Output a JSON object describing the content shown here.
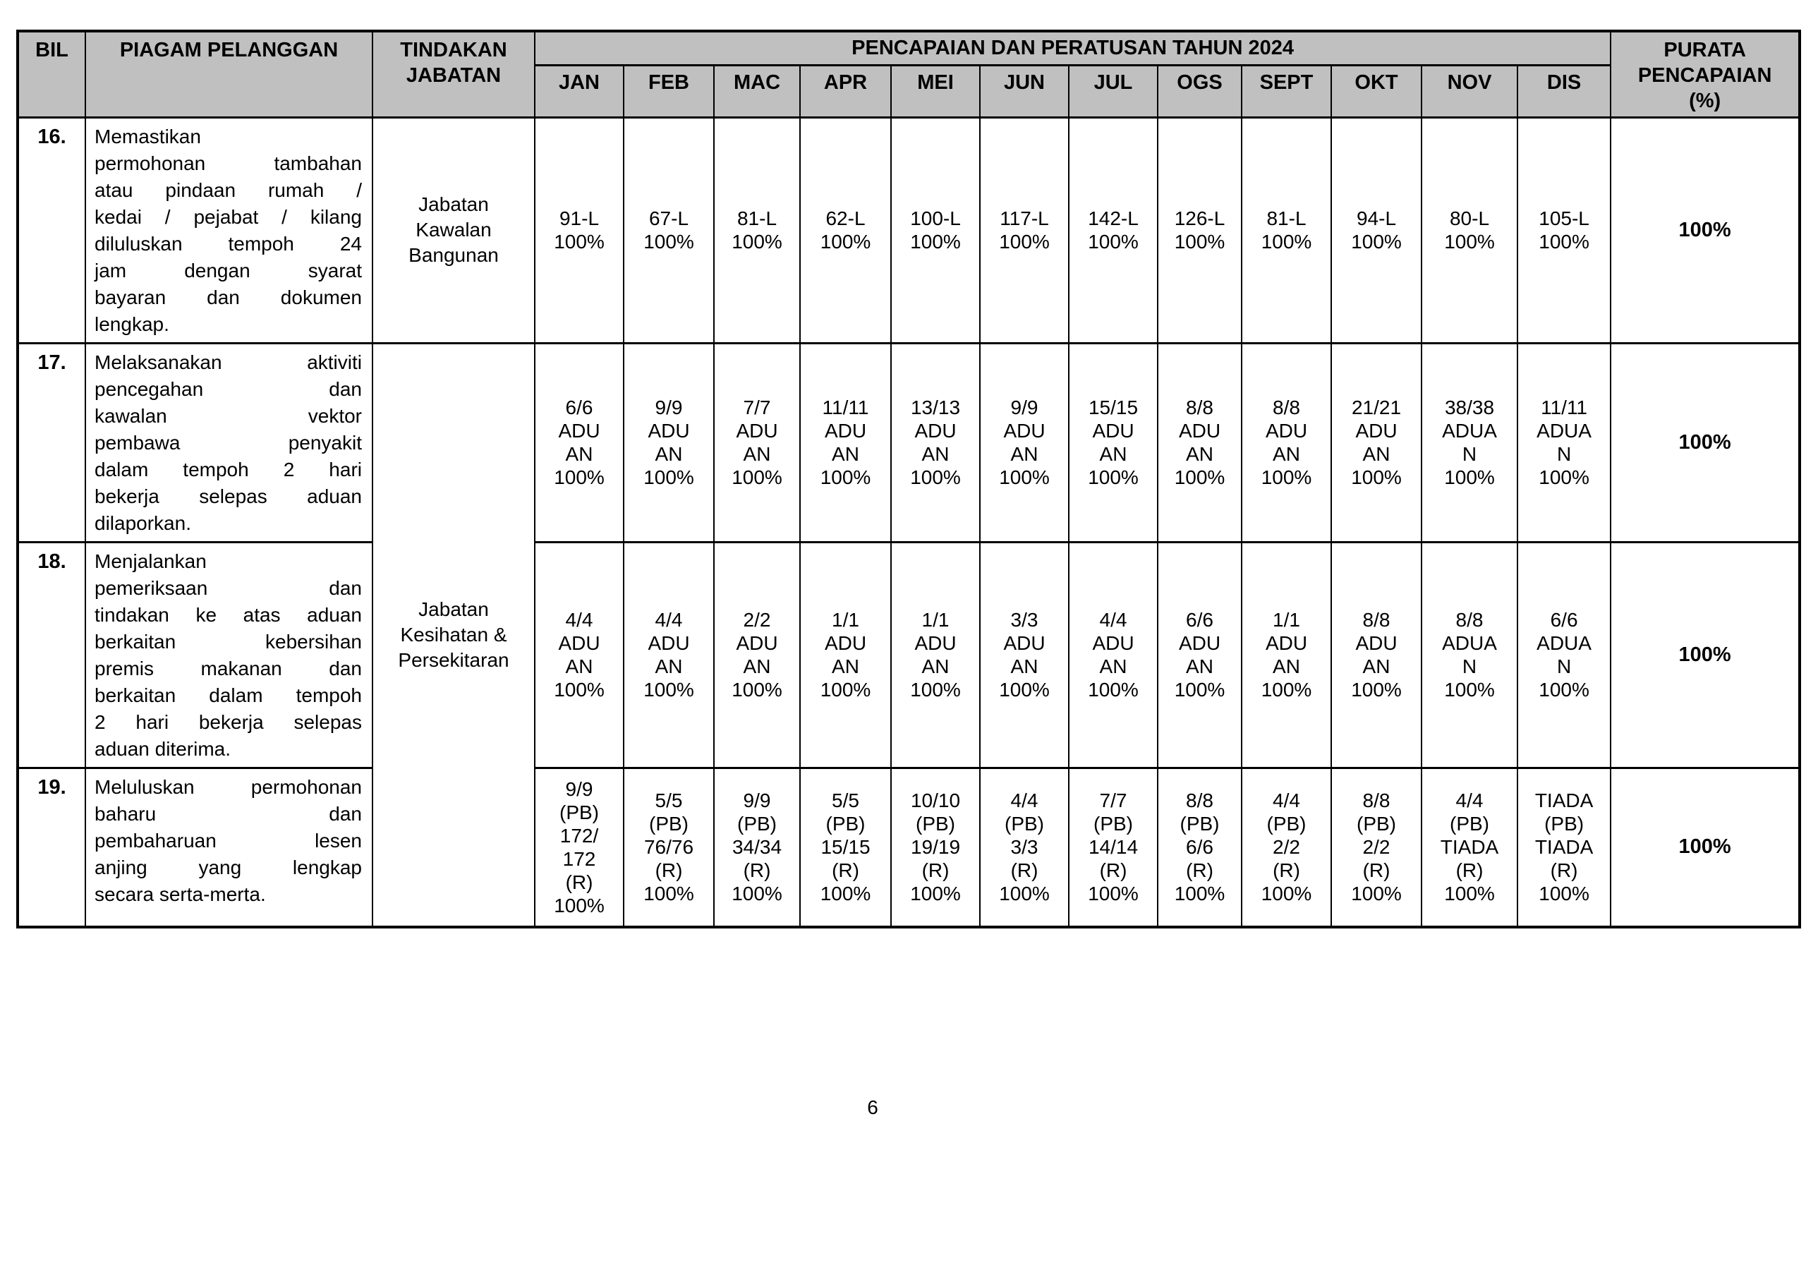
{
  "document": {
    "page_number": "6",
    "colors": {
      "header_bg": "#c0c0c0",
      "border": "#000000",
      "text": "#000000",
      "page_bg": "#ffffff"
    }
  },
  "table": {
    "header": {
      "bil": "BIL",
      "piagam": "PIAGAM PELANGGAN",
      "tindakan": "TINDAKAN\nJABATAN",
      "pencapaian": "PENCAPAIAN DAN PERATUSAN TAHUN 2024",
      "months": [
        "JAN",
        "FEB",
        "MAC",
        "APR",
        "MEI",
        "JUN",
        "JUL",
        "OGS",
        "SEPT",
        "OKT",
        "NOV",
        "DIS"
      ],
      "purata": "PURATA\nPENCAPAIAN\n(%)"
    },
    "rows": [
      {
        "bil": "16.",
        "piagam_lines": [
          "Memastikan",
          "permohonan tambahan",
          "atau pindaan rumah /",
          "kedai / pejabat / kilang",
          "diluluskan tempoh 24",
          "jam dengan syarat",
          "bayaran dan dokumen",
          "lengkap."
        ],
        "jabatan": "Jabatan\nKawalan\nBangunan",
        "months": [
          "91-L\n100%",
          "67-L\n100%",
          "81-L\n100%",
          "62-L\n100%",
          "100-L\n100%",
          "117-L\n100%",
          "142-L\n100%",
          "126-L\n100%",
          "81-L\n100%",
          "94-L\n100%",
          "80-L\n100%",
          "105-L\n100%"
        ],
        "purata": "100%"
      },
      {
        "bil": "17.",
        "piagam_lines": [
          "Melaksanakan aktiviti",
          "pencegahan dan",
          "kawalan vektor",
          "pembawa penyakit",
          "dalam tempoh 2 hari",
          "bekerja selepas aduan",
          "dilaporkan."
        ],
        "jabatan": "Jabatan\nKesihatan &\nPersekitaran",
        "months": [
          "6/6\nADU\nAN\n100%",
          "9/9\nADU\nAN\n100%",
          "7/7\nADU\nAN\n100%",
          "11/11\nADU\nAN\n100%",
          "13/13\nADU\nAN\n100%",
          "9/9\nADU\nAN\n100%",
          "15/15\nADU\nAN\n100%",
          "8/8\nADU\nAN\n100%",
          "8/8\nADU\nAN\n100%",
          "21/21\nADU\nAN\n100%",
          "38/38\nADUA\nN\n100%",
          "11/11\nADUA\nN\n100%"
        ],
        "purata": "100%"
      },
      {
        "bil": "18.",
        "piagam_lines": [
          "Menjalankan",
          "pemeriksaan dan",
          "tindakan ke atas aduan",
          "berkaitan kebersihan",
          "premis makanan dan",
          "berkaitan dalam tempoh",
          "2 hari bekerja selepas",
          "aduan diterima."
        ],
        "jabatan": null,
        "months": [
          "4/4\nADU\nAN\n100%",
          "4/4\nADU\nAN\n100%",
          "2/2\nADU\nAN\n100%",
          "1/1\nADU\nAN\n100%",
          "1/1\nADU\nAN\n100%",
          "3/3\nADU\nAN\n100%",
          "4/4\nADU\nAN\n100%",
          "6/6\nADU\nAN\n100%",
          "1/1\nADU\nAN\n100%",
          "8/8\nADU\nAN\n100%",
          "8/8\nADUA\nN\n100%",
          "6/6\nADUA\nN\n100%"
        ],
        "purata": "100%"
      },
      {
        "bil": "19.",
        "piagam_lines": [
          "Meluluskan permohonan",
          "baharu dan",
          "pembaharuan lesen",
          "anjing yang lengkap",
          "secara serta-merta."
        ],
        "jabatan": null,
        "months": [
          "9/9\n(PB)\n172/\n172\n(R)\n100%",
          "5/5\n(PB)\n76/76\n(R)\n100%",
          "9/9\n(PB)\n34/34\n(R)\n100%",
          "5/5\n(PB)\n15/15\n(R)\n100%",
          "10/10\n(PB)\n19/19\n(R)\n100%",
          "4/4\n(PB)\n3/3\n(R)\n100%",
          "7/7\n(PB)\n14/14\n(R)\n100%",
          "8/8\n(PB)\n6/6\n(R)\n100%",
          "4/4\n(PB)\n2/2\n(R)\n100%",
          "8/8\n(PB)\n2/2\n(R)\n100%",
          "4/4\n(PB)\nTIADA\n(R)\n100%",
          "TIADA\n(PB)\nTIADA\n(R)\n100%"
        ],
        "purata": "100%"
      }
    ]
  }
}
